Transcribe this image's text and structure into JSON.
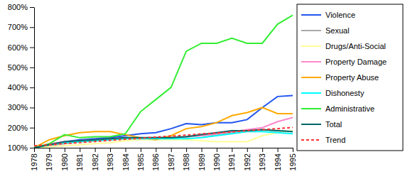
{
  "chart_data": {
    "type": "line",
    "x": [
      1978,
      1979,
      1980,
      1981,
      1982,
      1983,
      1984,
      1985,
      1986,
      1987,
      1988,
      1989,
      1990,
      1991,
      1992,
      1993,
      1994,
      1995
    ],
    "xlim": [
      1978,
      1995
    ],
    "xticks": [
      1978,
      1979,
      1980,
      1981,
      1982,
      1983,
      1984,
      1985,
      1986,
      1987,
      1988,
      1989,
      1990,
      1991,
      1992,
      1993,
      1994,
      1995
    ],
    "ylim": [
      100,
      800
    ],
    "yticks": [
      {
        "value": 100,
        "label": "100%"
      },
      {
        "value": 200,
        "label": "200%"
      },
      {
        "value": 300,
        "label": "300%"
      },
      {
        "value": 400,
        "label": "400%"
      },
      {
        "value": 500,
        "label": "500%"
      },
      {
        "value": 600,
        "label": "600%"
      },
      {
        "value": 700,
        "label": "700%"
      },
      {
        "value": 800,
        "label": "800%"
      }
    ],
    "grid": false,
    "legend": "right",
    "series": [
      {
        "name": "Violence",
        "color": "#2255ee",
        "values": [
          100,
          115,
          130,
          140,
          145,
          150,
          160,
          170,
          175,
          195,
          220,
          215,
          225,
          225,
          240,
          300,
          355,
          360
        ]
      },
      {
        "name": "Sexual",
        "color": "#aaaaaa",
        "values": [
          100,
          110,
          120,
          130,
          135,
          140,
          145,
          145,
          150,
          150,
          155,
          160,
          165,
          175,
          185,
          190,
          185,
          180
        ]
      },
      {
        "name": "Drugs/Anti-Social",
        "color": "#ffff99",
        "values": [
          100,
          105,
          110,
          115,
          120,
          125,
          135,
          140,
          140,
          140,
          140,
          135,
          130,
          130,
          130,
          160,
          175,
          185
        ]
      },
      {
        "name": "Property Damage",
        "color": "#ff88cc",
        "values": [
          100,
          120,
          130,
          135,
          140,
          145,
          150,
          145,
          145,
          150,
          155,
          160,
          170,
          180,
          190,
          200,
          230,
          250
        ]
      },
      {
        "name": "Property Abuse",
        "color": "#ffaa00",
        "values": [
          100,
          140,
          160,
          175,
          180,
          180,
          165,
          150,
          140,
          160,
          195,
          205,
          225,
          260,
          275,
          300,
          270,
          270
        ]
      },
      {
        "name": "Dishonesty",
        "color": "#00ffff",
        "values": [
          100,
          115,
          125,
          130,
          135,
          140,
          145,
          145,
          145,
          145,
          145,
          150,
          160,
          170,
          180,
          180,
          175,
          170
        ]
      },
      {
        "name": "Administrative",
        "color": "#33ee33",
        "values": [
          100,
          120,
          165,
          150,
          155,
          155,
          170,
          280,
          340,
          400,
          580,
          620,
          620,
          645,
          620,
          620,
          715,
          760
        ]
      },
      {
        "name": "Total",
        "color": "#006666",
        "values": [
          100,
          115,
          130,
          135,
          140,
          145,
          150,
          150,
          150,
          150,
          155,
          165,
          175,
          185,
          185,
          190,
          185,
          180
        ]
      },
      {
        "name": "Trend",
        "color": "#ff3333",
        "line_style": "dashed",
        "values": [
          110,
          115,
          121,
          126,
          131,
          137,
          142,
          147,
          153,
          158,
          163,
          169,
          174,
          179,
          185,
          190,
          195,
          201
        ]
      }
    ]
  }
}
